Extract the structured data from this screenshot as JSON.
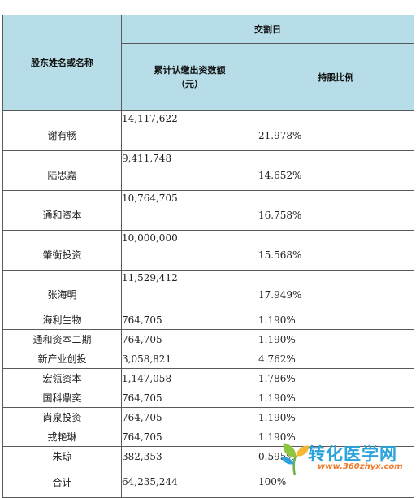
{
  "header": {
    "col_name": "股东姓名或名称",
    "group_title": "交割日",
    "col_amount": "累计认缴出资数额\n（元）",
    "col_ratio": "持股比例"
  },
  "rows": [
    {
      "name": "谢有畅",
      "amount": "14,117,622",
      "ratio": "21.978%"
    },
    {
      "name": "陆思嘉",
      "amount": "9,411,748",
      "ratio": "14.652%"
    },
    {
      "name": "通和资本",
      "amount": "10,764,705",
      "ratio": "16.758%"
    },
    {
      "name": "肇衡投资",
      "amount": "10,000,000",
      "ratio": "15.568%"
    },
    {
      "name": "张海明",
      "amount": "11,529,412",
      "ratio": "17.949%"
    },
    {
      "name": "海利生物",
      "amount": "764,705",
      "ratio": "1.190%"
    },
    {
      "name": "通和资本二期",
      "amount": "764,705",
      "ratio": "1.190%"
    },
    {
      "name": "新产业创投",
      "amount": "3,058,821",
      "ratio": "4.762%"
    },
    {
      "name": "宏瓴资本",
      "amount": "1,147,058",
      "ratio": "1.786%"
    },
    {
      "name": "国科鼎奕",
      "amount": "764,705",
      "ratio": "1.190%"
    },
    {
      "name": "尚泉投资",
      "amount": "764,705",
      "ratio": "1.190%"
    },
    {
      "name": "戎艳琳",
      "amount": "764,705",
      "ratio": "1.190%"
    },
    {
      "name": "朱琼",
      "amount": "382,353",
      "ratio": "0.595%"
    }
  ],
  "total": {
    "name": "合计",
    "amount": "64,235,244",
    "ratio": "100%"
  },
  "watermark": {
    "brand": "转化医学网",
    "url": "www.360zhyx.com"
  },
  "colors": {
    "header_bg": "#b6dde8",
    "border": "#5a5a5a",
    "brand": "#2aa3dc",
    "url": "#f07a2a"
  }
}
